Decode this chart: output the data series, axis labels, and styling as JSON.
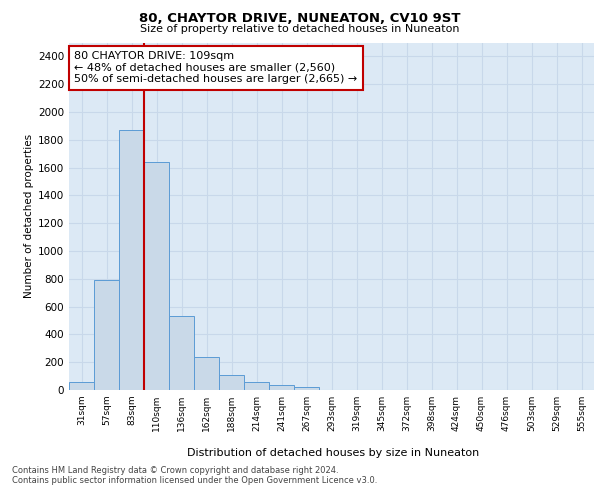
{
  "title1": "80, CHAYTOR DRIVE, NUNEATON, CV10 9ST",
  "title2": "Size of property relative to detached houses in Nuneaton",
  "xlabel": "Distribution of detached houses by size in Nuneaton",
  "ylabel": "Number of detached properties",
  "bar_labels": [
    "31sqm",
    "57sqm",
    "83sqm",
    "110sqm",
    "136sqm",
    "162sqm",
    "188sqm",
    "214sqm",
    "241sqm",
    "267sqm",
    "293sqm",
    "319sqm",
    "345sqm",
    "372sqm",
    "398sqm",
    "424sqm",
    "450sqm",
    "476sqm",
    "503sqm",
    "529sqm",
    "555sqm"
  ],
  "bar_values": [
    60,
    790,
    1870,
    1640,
    530,
    240,
    110,
    60,
    35,
    20,
    0,
    0,
    0,
    0,
    0,
    0,
    0,
    0,
    0,
    0,
    0
  ],
  "bar_color": "#c9d9e8",
  "bar_edgecolor": "#5b9bd5",
  "vline_color": "#c00000",
  "annotation_text": "80 CHAYTOR DRIVE: 109sqm\n← 48% of detached houses are smaller (2,560)\n50% of semi-detached houses are larger (2,665) →",
  "annotation_box_color": "#c00000",
  "ylim": [
    0,
    2500
  ],
  "yticks": [
    0,
    200,
    400,
    600,
    800,
    1000,
    1200,
    1400,
    1600,
    1800,
    2000,
    2200,
    2400
  ],
  "grid_color": "#c8d8ea",
  "background_color": "#dce9f5",
  "footer1": "Contains HM Land Registry data © Crown copyright and database right 2024.",
  "footer2": "Contains public sector information licensed under the Open Government Licence v3.0."
}
